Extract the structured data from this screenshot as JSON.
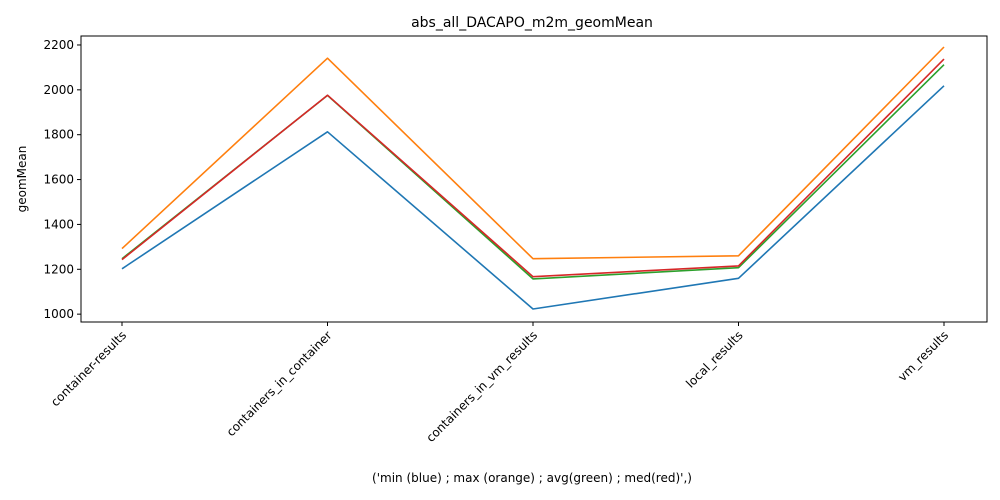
{
  "chart_data": {
    "type": "line",
    "title": "abs_all_DACAPO_m2m_geomMean",
    "xlabel": "('min (blue) ; max (orange) ; avg(green) ; med(red)',)",
    "ylabel": "geomMean",
    "categories": [
      "container-results",
      "containers_in_container",
      "containers_in_vm_results",
      "local_results",
      "vm_results"
    ],
    "yticks": [
      1000,
      1200,
      1400,
      1600,
      1800,
      2000,
      2200
    ],
    "ylim": [
      965,
      2240
    ],
    "grid": false,
    "series": [
      {
        "color": "#1f77b4",
        "values": [
          1202,
          1813,
          1023,
          1160,
          2018
        ]
      },
      {
        "color": "#ff7f0e",
        "values": [
          1292,
          2141,
          1247,
          1260,
          2191
        ]
      },
      {
        "color": "#2ca02c",
        "values": [
          1247,
          1975,
          1157,
          1207,
          2112
        ]
      },
      {
        "color": "#d62728",
        "values": [
          1243,
          1976,
          1167,
          1215,
          2137
        ]
      }
    ]
  }
}
